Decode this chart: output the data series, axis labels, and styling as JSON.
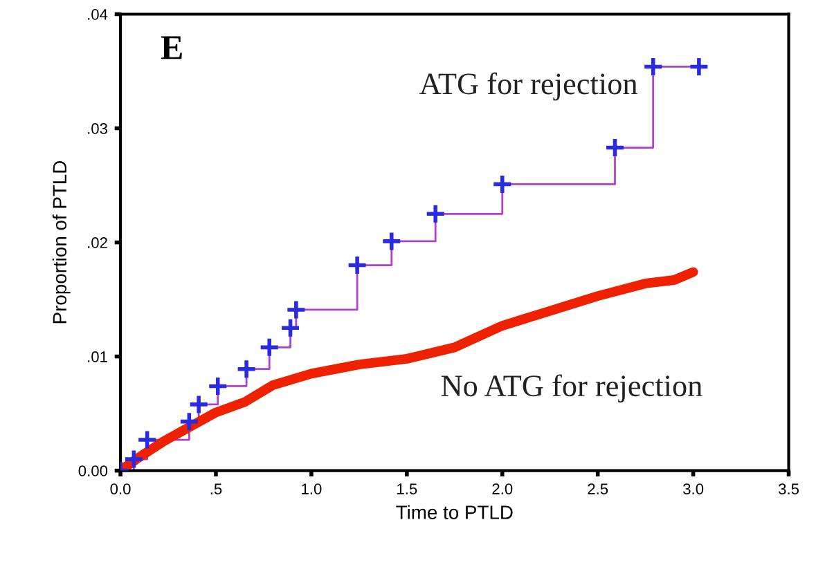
{
  "chart_data": {
    "type": "step",
    "xlabel": "Time to PTLD",
    "ylabel": "Proportion of PTLD",
    "annotations": [
      "E"
    ],
    "xlim": [
      0,
      3.5
    ],
    "xticks": [
      {
        "value": 0,
        "label": "0.0"
      },
      {
        "value": 0.5,
        "label": ".5"
      },
      {
        "value": 1,
        "label": "1.0"
      },
      {
        "value": 1.5,
        "label": "1.5"
      },
      {
        "value": 2,
        "label": "2.0"
      },
      {
        "value": 2.5,
        "label": "2.5"
      },
      {
        "value": 3,
        "label": "3.0"
      },
      {
        "value": 3.5,
        "label": "3.5"
      }
    ],
    "ylim": [
      0,
      0.04
    ],
    "yticks": [
      {
        "value": 0,
        "label": "0.00"
      },
      {
        "value": 0.01,
        "label": ".01"
      },
      {
        "value": 0.02,
        "label": ".02"
      },
      {
        "value": 0.03,
        "label": ".03"
      },
      {
        "value": 0.04,
        "label": ".04"
      }
    ],
    "grid": false,
    "legend": false,
    "series": [
      {
        "name": "ATG for rejection",
        "color": "#2a2ae0",
        "marker": "cross",
        "x": [
          0,
          0.07,
          0.14,
          0.36,
          0.41,
          0.51,
          0.66,
          0.78,
          0.89,
          0.92,
          1.24,
          1.42,
          1.65,
          2.0,
          2.59,
          2.79,
          3.03
        ],
        "values": [
          0,
          0.001,
          0.0027,
          0.0043,
          0.0058,
          0.0074,
          0.0089,
          0.0108,
          0.0125,
          0.0141,
          0.018,
          0.0201,
          0.0225,
          0.0251,
          0.0283,
          0.0354,
          0.0354
        ]
      },
      {
        "name": "No ATG for rejection",
        "type": "line",
        "color": "#ee2200",
        "marker": "none",
        "x": [
          0,
          0.1,
          0.23,
          0.5,
          0.65,
          0.8,
          1.0,
          1.25,
          1.5,
          1.75,
          2.0,
          2.25,
          2.5,
          2.75,
          2.9,
          3.0
        ],
        "values": [
          0,
          0.0012,
          0.0026,
          0.0051,
          0.006,
          0.0075,
          0.0085,
          0.0093,
          0.0098,
          0.0108,
          0.0127,
          0.014,
          0.0153,
          0.0164,
          0.0167,
          0.0174
        ]
      }
    ]
  }
}
